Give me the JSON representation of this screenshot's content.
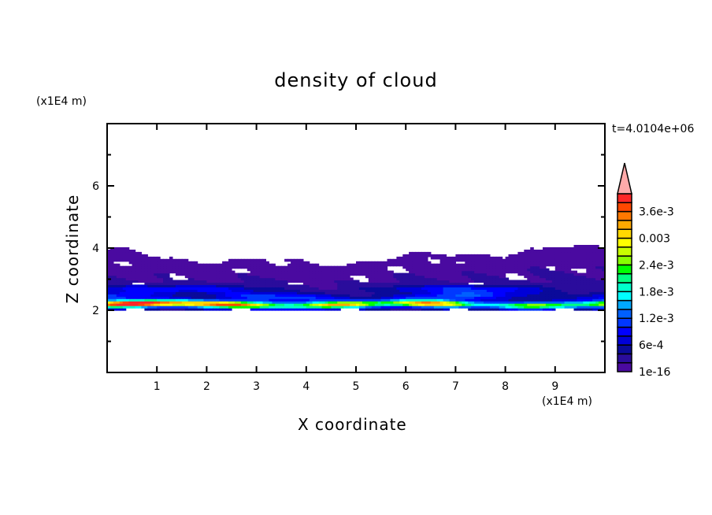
{
  "chart_data": {
    "type": "heatmap",
    "subtype": "filled-contour",
    "title": "density of cloud",
    "xlabel": "X coordinate",
    "ylabel": "Z coordinate",
    "x_unit": "(x1E4 m)",
    "y_unit": "(x1E4 m)",
    "annotation": "t=4.0104e+06",
    "xlim": [
      0,
      10
    ],
    "ylim": [
      0,
      8
    ],
    "xticks": [
      "1",
      "2",
      "3",
      "4",
      "5",
      "6",
      "7",
      "8",
      "9"
    ],
    "yticks": [
      "2",
      "4",
      "6"
    ],
    "cloud_layer": {
      "z_bottom": 2.0,
      "z_top_range": [
        3.6,
        4.3
      ],
      "max_density_z": 2.2
    },
    "colorbar": {
      "levels_step": 0.0002,
      "min": 1e-16,
      "max": 0.004,
      "labels": [
        "1e-16",
        "6e-4",
        "1.2e-3",
        "1.8e-3",
        "2.4e-3",
        "0.003",
        "3.6e-3"
      ],
      "label_values": [
        0,
        0.0006,
        0.0012,
        0.0018,
        0.0024,
        0.003,
        0.0036
      ],
      "colors": [
        "#4a0aa0",
        "#2a0c9c",
        "#0a0a9a",
        "#0000d8",
        "#0000ff",
        "#0038ff",
        "#0060ff",
        "#00a8ff",
        "#00ffff",
        "#00ffcc",
        "#00ff80",
        "#00ff00",
        "#88ff00",
        "#c8ff00",
        "#ffff00",
        "#ffd800",
        "#ffa800",
        "#ff7800",
        "#ff4800",
        "#ff2828"
      ],
      "overflow_color": "#ffaaaa"
    }
  }
}
